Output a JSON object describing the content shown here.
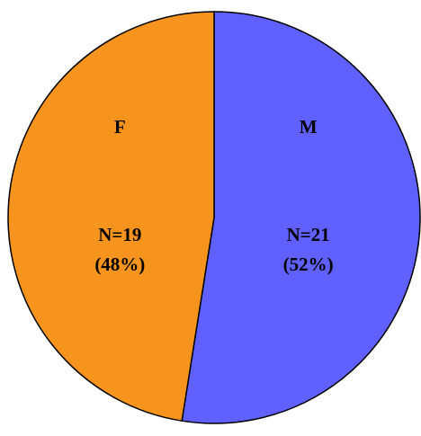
{
  "chart_data": {
    "type": "pie",
    "categories": [
      "M",
      "F"
    ],
    "values": [
      21,
      19
    ],
    "percent_labels": [
      "(52%)",
      "(48%)"
    ],
    "count_labels": [
      "N=21",
      "N=19"
    ],
    "colors": [
      "#6060ff",
      "#f7941d"
    ],
    "legend": "none",
    "title": ""
  }
}
